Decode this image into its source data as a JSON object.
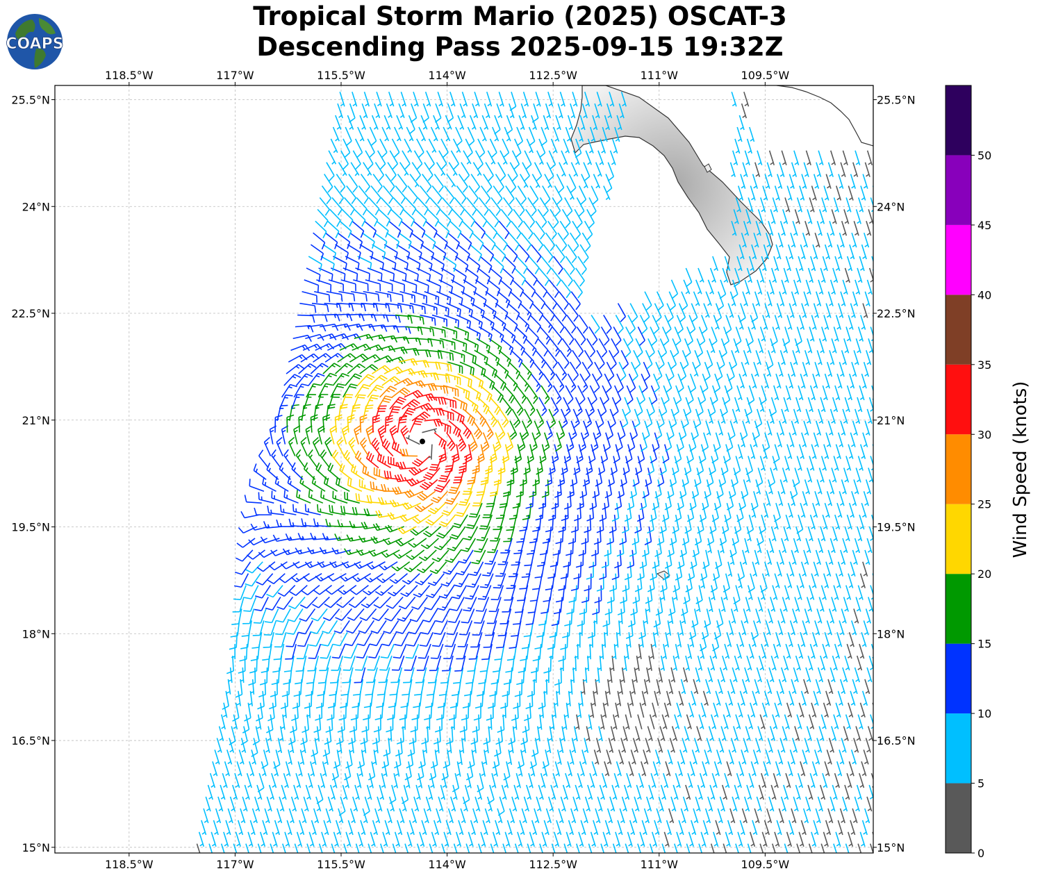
{
  "header": {
    "title_line1": "Tropical Storm Mario (2025) OSCAT-3",
    "title_line2": "Descending Pass 2025-09-15 19:32Z",
    "logo_text": "COAPS"
  },
  "map": {
    "lon_range": [
      -119.55,
      -107.97
    ],
    "lat_range": [
      14.92,
      25.7
    ],
    "lon_ticks": [
      {
        "value": -118.5,
        "label": "118.5°W"
      },
      {
        "value": -117.0,
        "label": "117°W"
      },
      {
        "value": -115.5,
        "label": "115.5°W"
      },
      {
        "value": -114.0,
        "label": "114°W"
      },
      {
        "value": -112.5,
        "label": "112.5°W"
      },
      {
        "value": -111.0,
        "label": "111°W"
      },
      {
        "value": -109.5,
        "label": "109.5°W"
      }
    ],
    "lat_ticks": [
      {
        "value": 25.5,
        "label": "25.5°N"
      },
      {
        "value": 24.0,
        "label": "24°N"
      },
      {
        "value": 22.5,
        "label": "22.5°N"
      },
      {
        "value": 21.0,
        "label": "21°N"
      },
      {
        "value": 19.5,
        "label": "19.5°N"
      },
      {
        "value": 18.0,
        "label": "18°N"
      },
      {
        "value": 16.5,
        "label": "16.5°N"
      },
      {
        "value": 15.0,
        "label": "15°N"
      }
    ],
    "gridlines": true,
    "storm_center": {
      "lon": -114.35,
      "lat": 20.7
    },
    "features": [
      "Baja California Sur peninsula",
      "mainland Mexico coast (northeast corner)"
    ]
  },
  "colorbar": {
    "label": "Wind Speed (knots)",
    "orientation": "vertical",
    "placement": "right",
    "bins": [
      {
        "min": 0,
        "max": 5,
        "color": "#595959"
      },
      {
        "min": 5,
        "max": 10,
        "color": "#00bfff"
      },
      {
        "min": 10,
        "max": 15,
        "color": "#0033ff"
      },
      {
        "min": 15,
        "max": 20,
        "color": "#009900"
      },
      {
        "min": 20,
        "max": 25,
        "color": "#ffd700"
      },
      {
        "min": 25,
        "max": 30,
        "color": "#ff8c00"
      },
      {
        "min": 30,
        "max": 35,
        "color": "#ff0f0f"
      },
      {
        "min": 35,
        "max": 40,
        "color": "#7f3f26"
      },
      {
        "min": 40,
        "max": 45,
        "color": "#ff00ff"
      },
      {
        "min": 45,
        "max": 50,
        "color": "#8800bb"
      },
      {
        "min": 50,
        "max": 55,
        "color": "#2e005e"
      }
    ],
    "tick_labels": [
      "0",
      "5",
      "10",
      "15",
      "20",
      "25",
      "30",
      "35",
      "40",
      "45",
      "50"
    ]
  },
  "chart_data": {
    "type": "wind_barb_map",
    "title": "Tropical Storm Mario (2025) OSCAT-3 Descending Pass 2025-09-15 19:32Z",
    "units": "knots",
    "swath": {
      "west_edge_lon_south": -117.55,
      "west_edge_lon_north": -115.5,
      "east_edge_lon": -107.97,
      "lat_min": 15.0,
      "lat_max": 25.7
    },
    "vortex": {
      "center_lon": -114.35,
      "center_lat": 20.7,
      "max_wind_kt": 34,
      "rotation": "cyclonic"
    }
  }
}
